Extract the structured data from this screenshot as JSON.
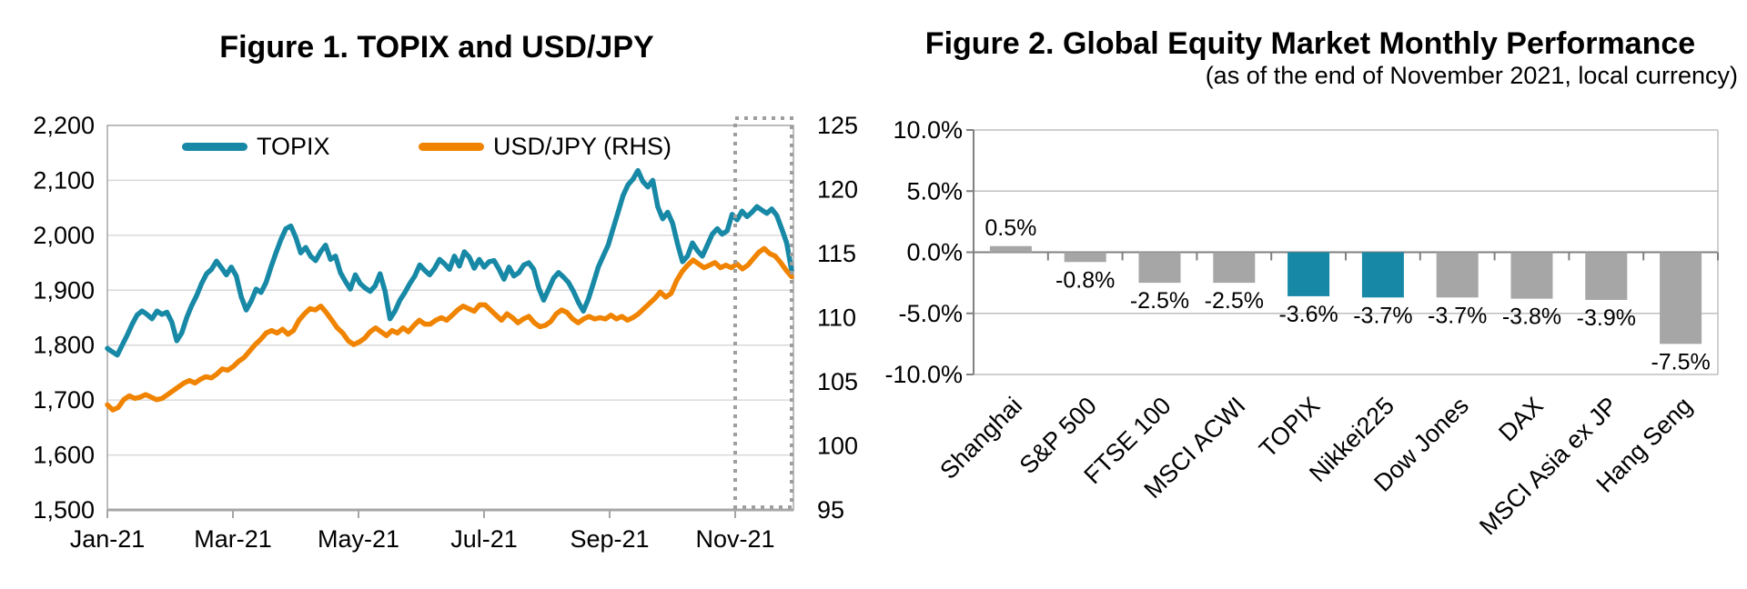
{
  "colors": {
    "teal": "#1789A6",
    "orange": "#F08300",
    "bar_gray": "#A6A6A6",
    "gridline_light": "#D9D9D9",
    "gridline_mid": "#BFBFBF",
    "axis_gray": "#A6A6A6",
    "spine_dark": "#808080",
    "highlight_box": "#9E9E9E",
    "text": "#000000"
  },
  "figure1": {
    "title": "Figure 1. TOPIX and USD/JPY",
    "legend": [
      {
        "label": "TOPIX",
        "color": "#1789A6"
      },
      {
        "label": "USD/JPY (RHS)",
        "color": "#F08300"
      }
    ]
  },
  "figure2": {
    "title": "Figure 2. Global Equity Market Monthly Performance",
    "subtitle": "(as of the end of November 2021, local currency)"
  },
  "chart_data": [
    {
      "type": "line",
      "title": "Figure 1. TOPIX and USD/JPY",
      "x_tick_labels": [
        "Jan-21",
        "Mar-21",
        "May-21",
        "Jul-21",
        "Sep-21",
        "Nov-21"
      ],
      "x_range_note": "daily data Jan-2021 through end of Nov-2021",
      "left_axis": {
        "label_series": "TOPIX",
        "min": 1500,
        "max": 2200,
        "tick_step": 100,
        "tick_labels": [
          "2,200",
          "2,100",
          "2,000",
          "1,900",
          "1,800",
          "1,700",
          "1,600",
          "1,500"
        ]
      },
      "right_axis": {
        "label_series": "USD/JPY (RHS)",
        "min": 95,
        "max": 125,
        "tick_step": 5,
        "tick_labels": [
          "125",
          "120",
          "115",
          "110",
          "105",
          "100",
          "95"
        ]
      },
      "annotation": {
        "type": "dotted-box",
        "meaning": "highlights November 2021"
      },
      "grid": true,
      "legend_position": "top-inside",
      "series": [
        {
          "name": "TOPIX",
          "axis": "left",
          "color": "#1789A6",
          "values": [
            1794,
            1788,
            1782,
            1800,
            1818,
            1838,
            1855,
            1862,
            1856,
            1848,
            1862,
            1856,
            1860,
            1842,
            1808,
            1822,
            1850,
            1872,
            1890,
            1912,
            1930,
            1938,
            1953,
            1941,
            1928,
            1942,
            1926,
            1888,
            1864,
            1880,
            1902,
            1896,
            1914,
            1942,
            1968,
            1992,
            2012,
            2017,
            1996,
            1968,
            1978,
            1962,
            1954,
            1970,
            1982,
            1956,
            1962,
            1932,
            1916,
            1902,
            1928,
            1912,
            1904,
            1898,
            1908,
            1930,
            1898,
            1848,
            1862,
            1882,
            1896,
            1912,
            1926,
            1946,
            1936,
            1928,
            1940,
            1956,
            1948,
            1938,
            1962,
            1944,
            1970,
            1960,
            1940,
            1956,
            1942,
            1952,
            1954,
            1938,
            1920,
            1942,
            1926,
            1932,
            1946,
            1950,
            1938,
            1904,
            1882,
            1902,
            1922,
            1932,
            1924,
            1914,
            1898,
            1878,
            1862,
            1884,
            1912,
            1942,
            1962,
            1982,
            2012,
            2042,
            2072,
            2092,
            2102,
            2118,
            2098,
            2088,
            2100,
            2052,
            2030,
            2042,
            2022,
            1984,
            1952,
            1962,
            1986,
            1972,
            1962,
            1982,
            2002,
            2012,
            2002,
            2008,
            2038,
            2028,
            2044,
            2034,
            2042,
            2052,
            2046,
            2040,
            2048,
            2036,
            2012,
            1986,
            1936
          ]
        },
        {
          "name": "USD/JPY (RHS)",
          "axis": "right",
          "color": "#F08300",
          "values": [
            103.2,
            102.8,
            103.0,
            103.6,
            103.9,
            103.7,
            103.8,
            104.0,
            103.8,
            103.6,
            103.7,
            104.0,
            104.3,
            104.6,
            104.9,
            105.1,
            104.9,
            105.2,
            105.4,
            105.3,
            105.6,
            106.0,
            105.9,
            106.2,
            106.6,
            106.9,
            107.4,
            107.9,
            108.3,
            108.8,
            109.0,
            108.8,
            109.1,
            108.7,
            109.0,
            109.8,
            110.3,
            110.7,
            110.6,
            110.9,
            110.4,
            109.8,
            109.2,
            108.8,
            108.2,
            107.9,
            108.1,
            108.4,
            108.9,
            109.2,
            108.9,
            108.6,
            109.0,
            108.8,
            109.2,
            108.9,
            109.4,
            109.8,
            109.5,
            109.5,
            109.8,
            110.0,
            109.8,
            110.2,
            110.6,
            110.9,
            110.7,
            110.5,
            111.0,
            111.0,
            110.6,
            110.2,
            109.8,
            110.3,
            110.0,
            109.6,
            109.9,
            110.1,
            109.6,
            109.3,
            109.4,
            109.7,
            110.3,
            110.6,
            110.4,
            109.9,
            109.6,
            109.9,
            110.1,
            109.9,
            110.0,
            109.9,
            110.2,
            109.9,
            110.1,
            109.8,
            110.0,
            110.3,
            110.7,
            111.1,
            111.5,
            112.0,
            111.6,
            111.9,
            112.9,
            113.6,
            114.1,
            114.5,
            114.2,
            113.9,
            114.1,
            114.3,
            113.9,
            114.1,
            113.9,
            114.2,
            113.8,
            114.1,
            114.6,
            115.1,
            115.4,
            115.0,
            114.8,
            114.3,
            113.7,
            113.2
          ]
        }
      ]
    },
    {
      "type": "bar",
      "title": "Figure 2. Global Equity Market Monthly Performance",
      "subtitle": "(as of the end of November 2021, local currency)",
      "categories": [
        "Shanghai",
        "S&P 500",
        "FTSE 100",
        "MSCI ACWI",
        "TOPIX",
        "Nikkei225",
        "Dow Jones",
        "DAX",
        "MSCI Asia ex JP",
        "Hang Seng"
      ],
      "values": [
        0.5,
        -0.8,
        -2.5,
        -2.5,
        -3.6,
        -3.7,
        -3.7,
        -3.8,
        -3.9,
        -7.5
      ],
      "value_labels": [
        "0.5%",
        "-0.8%",
        "-2.5%",
        "-2.5%",
        "-3.6%",
        "-3.7%",
        "-3.7%",
        "-3.8%",
        "-3.9%",
        "-7.5%"
      ],
      "bar_color_keys": [
        "gray",
        "gray",
        "gray",
        "gray",
        "teal",
        "teal",
        "gray",
        "gray",
        "gray",
        "gray"
      ],
      "highlight_color": "#1789A6",
      "default_color": "#A6A6A6",
      "ylim": [
        -10,
        10
      ],
      "ytick_labels": [
        "10.0%",
        "5.0%",
        "0.0%",
        "-5.0%",
        "-10.0%"
      ],
      "grid": true,
      "xlabel": "",
      "ylabel": ""
    }
  ]
}
